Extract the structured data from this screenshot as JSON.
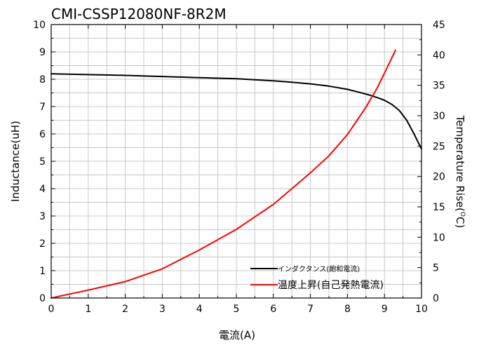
{
  "chart_data": {
    "type": "line",
    "title": "CMI-CSSP12080NF-8R2M",
    "xlabel": "電流(A)",
    "ylabel_left": "Inductance(uH)",
    "ylabel_right_main": "Temperature Rise(",
    "ylabel_right_sup": "O",
    "ylabel_right_end": "C)",
    "xlim": [
      0,
      10
    ],
    "ylim_left": [
      0,
      10
    ],
    "ylim_right": [
      0,
      45
    ],
    "x_ticks": [
      "0",
      "1",
      "2",
      "3",
      "4",
      "5",
      "6",
      "7",
      "8",
      "9",
      "10"
    ],
    "y_left_ticks": [
      "0",
      "1",
      "2",
      "3",
      "4",
      "5",
      "6",
      "7",
      "8",
      "9",
      "10"
    ],
    "y_right_ticks": [
      "0",
      "5",
      "10",
      "15",
      "20",
      "25",
      "30",
      "35",
      "40",
      "45"
    ],
    "grid": true,
    "legend_position": "bottom-right",
    "series": [
      {
        "name": "インダクタンス(飽和電流)",
        "axis": "left",
        "color": "#000000",
        "x": [
          0,
          1,
          2,
          3,
          4,
          5,
          5.5,
          6,
          6.5,
          7,
          7.5,
          8,
          8.3,
          8.6,
          8.8,
          9.0,
          9.2,
          9.4,
          9.6,
          9.8,
          10.0
        ],
        "y": [
          8.2,
          8.17,
          8.14,
          8.1,
          8.06,
          8.02,
          7.98,
          7.94,
          7.89,
          7.83,
          7.75,
          7.63,
          7.53,
          7.42,
          7.33,
          7.23,
          7.08,
          6.86,
          6.5,
          6.0,
          5.45
        ]
      },
      {
        "name": "温度上昇(自己発熱電流)",
        "axis": "right",
        "color": "#ff0000",
        "x": [
          0,
          1,
          2,
          3,
          4,
          5,
          6,
          7,
          7.5,
          8,
          8.5,
          8.8,
          9.0,
          9.3
        ],
        "y": [
          0,
          1.3,
          2.7,
          4.8,
          7.9,
          11.3,
          15.4,
          20.6,
          23.4,
          26.9,
          31.4,
          34.5,
          37.0,
          40.8
        ]
      }
    ]
  }
}
